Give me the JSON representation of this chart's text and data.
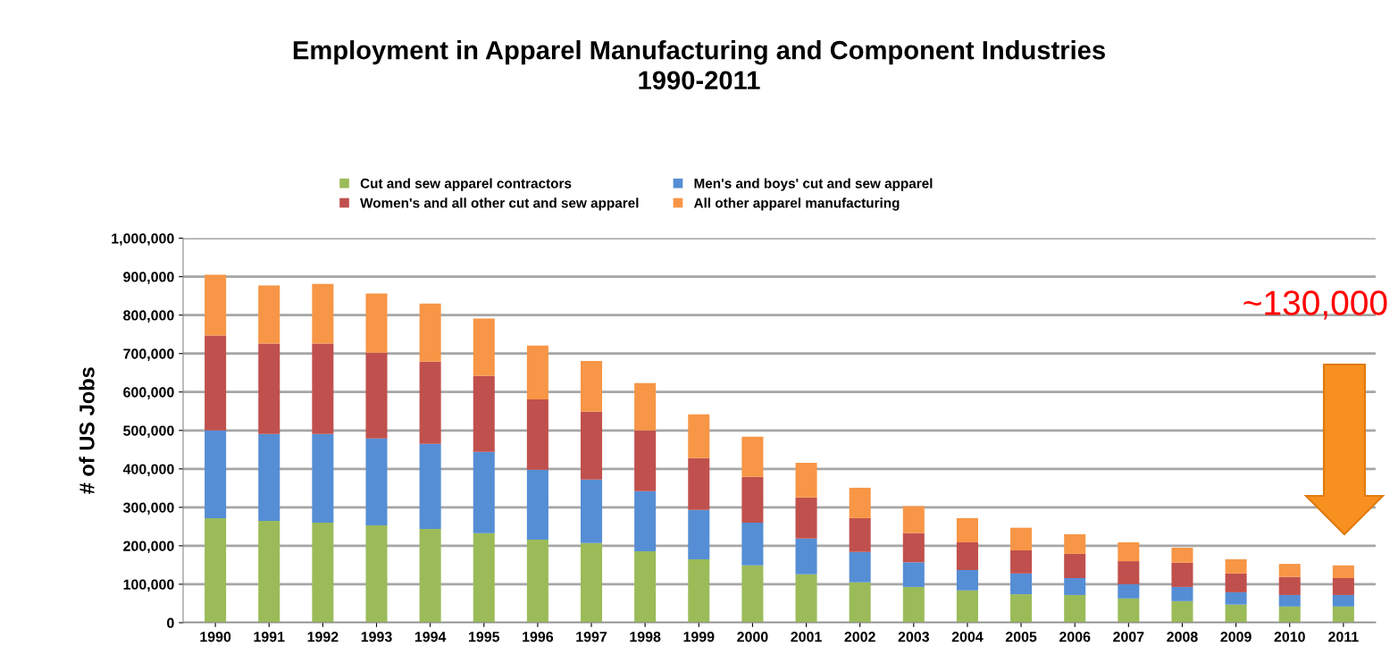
{
  "chart_data": {
    "type": "bar",
    "stacked": true,
    "title": "Employment in Apparel Manufacturing and Component Industries\n1990-2011",
    "ylabel": "# of US Jobs",
    "categories": [
      "1990",
      "1991",
      "1992",
      "1993",
      "1994",
      "1995",
      "1996",
      "1997",
      "1998",
      "1999",
      "2000",
      "2001",
      "2002",
      "2003",
      "2004",
      "2005",
      "2006",
      "2007",
      "2008",
      "2009",
      "2010",
      "2011"
    ],
    "series": [
      {
        "name": "Cut and sew apparel contractors",
        "color": "#9bbb59",
        "values": [
          272000,
          265000,
          260000,
          253000,
          244000,
          233000,
          216000,
          207000,
          186000,
          165000,
          149000,
          126000,
          105000,
          93000,
          84000,
          74000,
          72000,
          63000,
          56000,
          47000,
          42000,
          42000
        ]
      },
      {
        "name": "Men's and boys' cut and sew apparel",
        "color": "#558ed5",
        "values": [
          228000,
          226000,
          231000,
          226000,
          221000,
          211000,
          182000,
          165000,
          156000,
          128000,
          111000,
          93000,
          79000,
          64000,
          53000,
          54000,
          44000,
          37000,
          37000,
          32000,
          30000,
          30000
        ]
      },
      {
        "name": "Women's and all other cut and sew apparel",
        "color": "#c0504d",
        "values": [
          247000,
          235000,
          235000,
          223000,
          214000,
          198000,
          183000,
          177000,
          158000,
          135000,
          119000,
          107000,
          88000,
          76000,
          72000,
          60000,
          63000,
          60000,
          63000,
          49000,
          47000,
          44000
        ]
      },
      {
        "name": "All other apparel manufacturing",
        "color": "#f79646",
        "values": [
          158000,
          151000,
          155000,
          154000,
          151000,
          149000,
          140000,
          132000,
          123000,
          114000,
          105000,
          90000,
          79000,
          70000,
          63000,
          59000,
          51000,
          49000,
          39000,
          37000,
          34000,
          33000
        ]
      }
    ],
    "ylim": [
      0,
      1000000
    ],
    "yticks": [
      {
        "value": 0,
        "label": "0"
      },
      {
        "value": 100000,
        "label": "100,000"
      },
      {
        "value": 200000,
        "label": "200,000"
      },
      {
        "value": 300000,
        "label": "300,000"
      },
      {
        "value": 400000,
        "label": "400,000"
      },
      {
        "value": 500000,
        "label": "500,000"
      },
      {
        "value": 600000,
        "label": "600,000"
      },
      {
        "value": 700000,
        "label": "700,000"
      },
      {
        "value": 800000,
        "label": "800,000"
      },
      {
        "value": 900000,
        "label": "900,000"
      },
      {
        "value": 1000000,
        "label": "1,000,000"
      }
    ],
    "grid": "y",
    "legend": "top",
    "annotations": [
      "~130,000"
    ]
  }
}
